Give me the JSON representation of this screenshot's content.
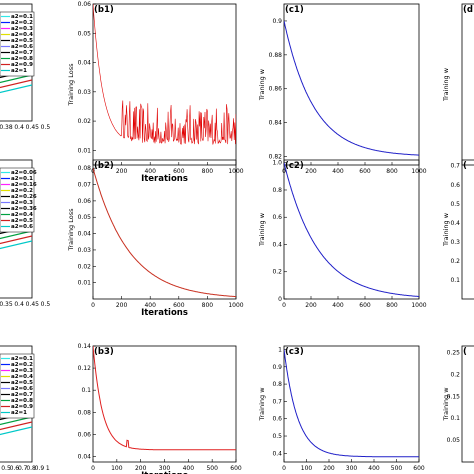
{
  "chart_data": [
    {
      "id": "a1",
      "type": "line",
      "partial": true,
      "x_ticks": [
        "0.38",
        "0.4",
        "0.45",
        "0.5"
      ],
      "legend": [
        "a2=0.1",
        "a2=0.2",
        "a2=0.3",
        "a2=0.4",
        "a2=0.5",
        "a2=0.6",
        "a2=0.7",
        "a2=0.8",
        "a2=0.9",
        "a2=1"
      ]
    },
    {
      "id": "b1",
      "type": "line",
      "tag": "(b1)",
      "xlabel": "Iterations",
      "ylabel": "Training  Loss",
      "xlim": [
        0,
        1000
      ],
      "ylim": [
        0.005,
        0.06
      ],
      "x_ticks": [
        0,
        200,
        400,
        600,
        800,
        1000
      ],
      "y_ticks": [
        "0.01",
        "0.02",
        "0.03",
        "0.04",
        "0.05",
        "0.06"
      ],
      "series": [
        {
          "color": "#e00000",
          "decay": {
            "start": 0.06,
            "end": 0.012,
            "tau": 70
          },
          "noise": {
            "from": 200,
            "amplitude": 0.014
          }
        }
      ]
    },
    {
      "id": "c1",
      "type": "line",
      "tag": "(c1)",
      "xlabel": "",
      "ylabel": "Traning  w",
      "xlim": [
        0,
        1000
      ],
      "ylim": [
        0.815,
        0.91
      ],
      "x_ticks": [
        0,
        200,
        400,
        600,
        800,
        1000
      ],
      "y_ticks": [
        "0.82",
        "0.84",
        "0.86",
        "0.88",
        "0.9"
      ],
      "series": [
        {
          "color": "#2020c8",
          "decay": {
            "start": 0.9,
            "end": 0.82,
            "tau": 220
          }
        }
      ]
    },
    {
      "id": "d1",
      "type": "line",
      "tag": "(d",
      "partial": true,
      "ylabel": "Training  w"
    },
    {
      "id": "a2",
      "type": "line",
      "partial": true,
      "x_ticks": [
        "0.35",
        "0.4",
        "0.45",
        "0.5"
      ],
      "legend": [
        "a2=0.06",
        "a2=0.1",
        "a2=0.16",
        "a2=0.2",
        "a2=0.26",
        "a2=0.3",
        "a2=0.36",
        "a2=0.4",
        "a2=0.5",
        "a2=0.6"
      ]
    },
    {
      "id": "b2",
      "type": "line",
      "tag": "(b2)",
      "xlabel": "Iterations",
      "ylabel": "Training  Loss",
      "xlim": [
        0,
        1000
      ],
      "ylim": [
        0,
        0.085
      ],
      "x_ticks": [
        0,
        200,
        400,
        600,
        800,
        1000
      ],
      "y_ticks": [
        "0.01",
        "0.02",
        "0.03",
        "0.04",
        "0.05",
        "0.06",
        "0.07",
        "0.08"
      ],
      "series": [
        {
          "color": "#c83020",
          "decay": {
            "start": 0.08,
            "end": 0.0,
            "tau": 250
          }
        }
      ]
    },
    {
      "id": "c2",
      "type": "line",
      "tag": "(c2)",
      "xlabel": "",
      "ylabel": "Training  w",
      "xlim": [
        0,
        1000
      ],
      "ylim": [
        0,
        1.02
      ],
      "x_ticks": [
        0,
        200,
        400,
        600,
        800,
        1000
      ],
      "y_ticks": [
        "0",
        "0.2",
        "0.4",
        "0.6",
        "0.8",
        "1.0"
      ],
      "series": [
        {
          "color": "#2020c8",
          "decay": {
            "start": 1.0,
            "end": 0.0,
            "tau": 250
          }
        }
      ]
    },
    {
      "id": "d2",
      "type": "line",
      "tag": "(",
      "partial": true,
      "ylabel": "Training  w",
      "y_ticks": [
        "0.1",
        "0.2",
        "0.3",
        "0.4",
        "0.5",
        "0.6",
        "0.7"
      ]
    },
    {
      "id": "a3",
      "type": "line",
      "partial": true,
      "x_ticks": [
        "0.5",
        "0.6",
        "0.7",
        "0.8",
        "0.9",
        "1"
      ],
      "legend": [
        "a2=0.1",
        "a2=0.2",
        "a2=0.3",
        "a2=0.4",
        "a2=0.5",
        "a2=0.6",
        "a2=0.7",
        "a2=0.8",
        "a2=0.9",
        "a2=1"
      ]
    },
    {
      "id": "b3",
      "type": "line",
      "tag": "(b3)",
      "xlabel": "Iterations",
      "ylabel": "",
      "xlim": [
        0,
        600
      ],
      "ylim": [
        0.035,
        0.14
      ],
      "x_ticks": [
        0,
        100,
        200,
        300,
        400,
        500,
        600
      ],
      "y_ticks": [
        "0.04",
        "0.06",
        "0.08",
        "0.1",
        "0.12",
        "0.14"
      ],
      "series": [
        {
          "color": "#e02020",
          "decay": {
            "start": 0.14,
            "end": 0.046,
            "tau": 40
          },
          "spike": {
            "x": 145,
            "height": 0.006
          }
        }
      ]
    },
    {
      "id": "c3",
      "type": "line",
      "tag": "(c3)",
      "xlabel": "",
      "ylabel": "Training  w",
      "xlim": [
        0,
        600
      ],
      "ylim": [
        0.35,
        1.02
      ],
      "x_ticks": [
        0,
        100,
        200,
        300,
        400,
        500,
        600
      ],
      "y_ticks": [
        "0.4",
        "0.5",
        "0.6",
        "0.7",
        "0.8",
        "0.9",
        "1"
      ],
      "series": [
        {
          "color": "#2020c8",
          "decay": {
            "start": 1.0,
            "end": 0.38,
            "tau": 60
          }
        }
      ]
    },
    {
      "id": "d3",
      "type": "line",
      "tag": "(",
      "partial": true,
      "ylabel": "Training  w",
      "y_ticks": [
        "0.05",
        "0.1",
        "0.15",
        "0.2",
        "0.25"
      ]
    }
  ]
}
